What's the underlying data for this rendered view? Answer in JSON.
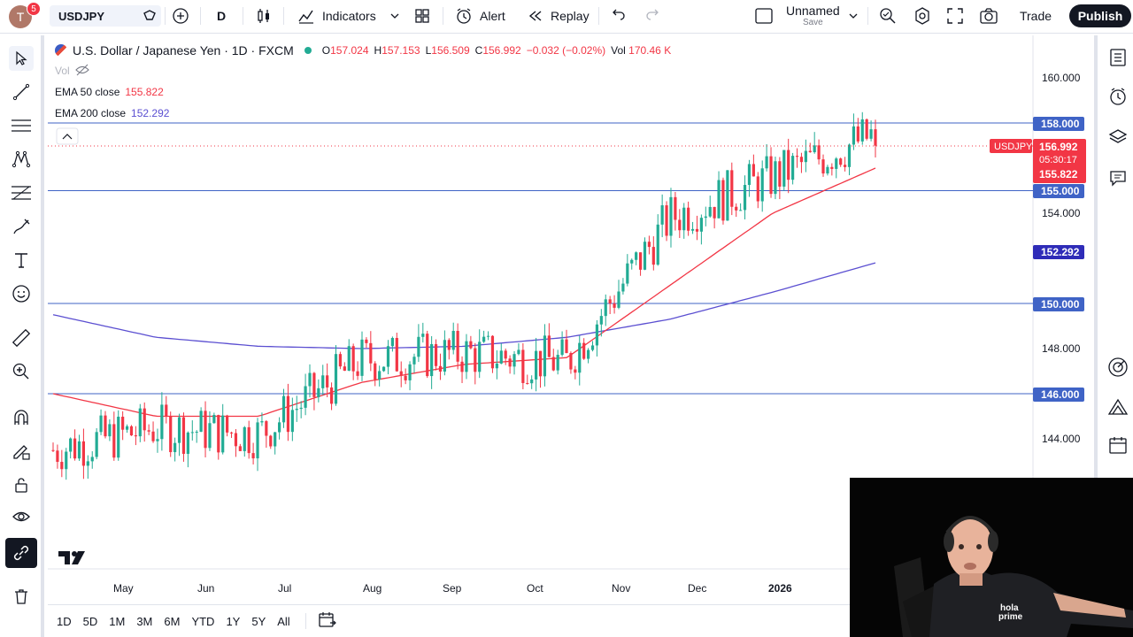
{
  "topbar": {
    "avatar_letter": "T",
    "avatar_badge": "5",
    "symbol": "USDJPY",
    "interval": "D",
    "indicators_label": "Indicators",
    "alert_label": "Alert",
    "replay_label": "Replay",
    "layout_name": "Unnamed",
    "layout_sub": "Save",
    "trade_label": "Trade",
    "publish_label": "Publish"
  },
  "legend": {
    "title": "U.S. Dollar / Japanese Yen · 1D · FXCM",
    "o_label": "O",
    "o": "157.024",
    "h_label": "H",
    "h": "157.153",
    "l_label": "L",
    "l": "156.509",
    "c_label": "C",
    "c": "156.992",
    "change": "−0.032 (−0.02%)",
    "vol_label": "Vol",
    "vol": "170.46 K",
    "vol_row": "Vol",
    "ema50_label": "EMA 50 close",
    "ema50": "155.822",
    "ema200_label": "EMA 200 close",
    "ema200": "152.292"
  },
  "price_axis": [
    "160.000",
    "154.000",
    "148.000",
    "144.000"
  ],
  "price_tags": {
    "h158": "158.000",
    "h155": "155.000",
    "h150": "150.000",
    "h146": "146.000",
    "symbol_tag": "USDJPY",
    "last": "156.992",
    "countdown": "05:30:17",
    "ema50": "155.822",
    "ema200": "152.292"
  },
  "time_axis": [
    "May",
    "Jun",
    "Jul",
    "Aug",
    "Sep",
    "Oct",
    "Nov",
    "Dec",
    "2026"
  ],
  "ranges": [
    "1D",
    "5D",
    "1M",
    "3M",
    "6M",
    "YTD",
    "1Y",
    "5Y",
    "All"
  ],
  "webcam": {
    "shirt_text_1": "hola",
    "shirt_text_2": "prime"
  },
  "colors": {
    "up": "#22ab94",
    "down": "#f23645",
    "ema50": "#f23645",
    "ema200": "#5b4fd1",
    "hline": "#3f63c6",
    "accent": "#2962ff"
  },
  "chart_data": {
    "type": "candlestick",
    "symbol": "USDJPY",
    "timeframe": "1D",
    "ylim": [
      142.0,
      161.0
    ],
    "horizontal_levels": [
      158.0,
      155.0,
      150.0,
      146.0
    ],
    "last_close": 156.992,
    "ema50_last": 155.822,
    "ema200_last": 152.292,
    "series": [
      {
        "name": "USDJPY close (approx)",
        "x": [
          "May",
          "Jun",
          "Jul",
          "Aug",
          "Sep",
          "Oct",
          "Nov",
          "Dec",
          "2026"
        ],
        "values": [
          143.5,
          144.5,
          144.2,
          147.5,
          147.8,
          147.4,
          153.8,
          155.6,
          157.5
        ]
      },
      {
        "name": "EMA 50 close (approx)",
        "x": [
          "May",
          "Jun",
          "Jul",
          "Aug",
          "Sep",
          "Oct",
          "Nov",
          "Dec",
          "2026"
        ],
        "values": [
          146.0,
          145.0,
          145.0,
          146.5,
          147.3,
          147.6,
          150.8,
          154.0,
          156.0
        ]
      },
      {
        "name": "EMA 200 close (approx)",
        "x": [
          "May",
          "Jun",
          "Jul",
          "Aug",
          "Sep",
          "Oct",
          "Nov",
          "Dec",
          "2026"
        ],
        "values": [
          149.5,
          148.5,
          148.1,
          148.0,
          148.1,
          148.5,
          149.3,
          150.5,
          151.8
        ]
      }
    ]
  }
}
